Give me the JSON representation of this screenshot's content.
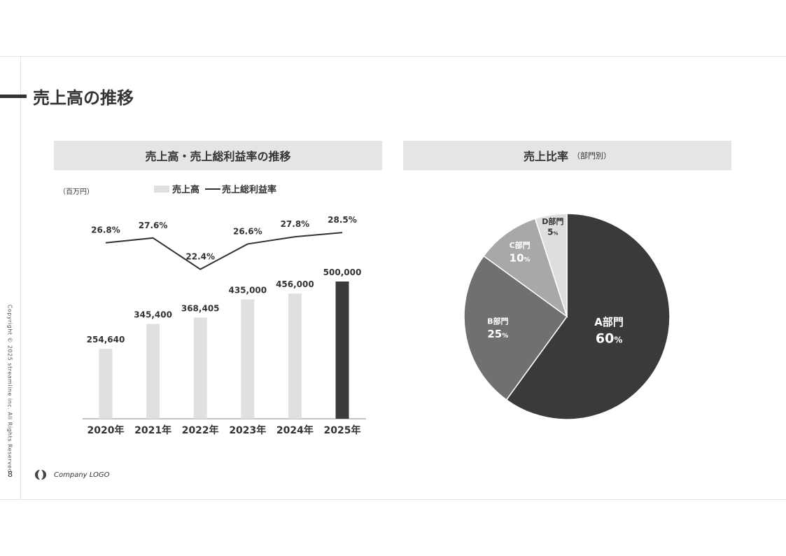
{
  "page_title": "売上高の推移",
  "left_panel": {
    "title": "売上高・売上総利益率の推移",
    "unit": "（百万円）"
  },
  "right_panel": {
    "title": "売上比率",
    "subtitle": "（部門別）"
  },
  "legend": {
    "bar_label": "売上高",
    "line_label": "売上総利益率"
  },
  "footer": {
    "page_number": "8",
    "logo_text": "Company LOGO",
    "copyright": "Copyright © 2025 streamline inc. All Rights Reserved"
  },
  "colors": {
    "bar_default": "#e0e0e0",
    "bar_highlight": "#3a3a3a",
    "line": "#333333",
    "header_bg": "#e5e5e5"
  },
  "chart_data": [
    {
      "type": "bar",
      "categories": [
        "2020年",
        "2021年",
        "2022年",
        "2023年",
        "2024年",
        "2025年"
      ],
      "series": [
        {
          "name": "売上高",
          "type": "bar",
          "values": [
            254640,
            345400,
            368405,
            435000,
            456000,
            500000
          ],
          "labels": [
            "254,640",
            "345,400",
            "368,405",
            "435,000",
            "456,000",
            "500,000"
          ]
        },
        {
          "name": "売上総利益率",
          "type": "line",
          "values": [
            26.8,
            27.6,
            22.4,
            26.6,
            27.8,
            28.5
          ],
          "labels": [
            "26.8%",
            "27.6%",
            "22.4%",
            "26.6%",
            "27.8%",
            "28.5%"
          ]
        }
      ],
      "highlight_index": 5
    },
    {
      "type": "pie",
      "slices": [
        {
          "label": "A部門",
          "value": 60,
          "value_label": "60",
          "unit": "%",
          "color": "#3a3a3a"
        },
        {
          "label": "B部門",
          "value": 25,
          "value_label": "25",
          "unit": "%",
          "color": "#707070"
        },
        {
          "label": "C部門",
          "value": 10,
          "value_label": "10",
          "unit": "%",
          "color": "#a8a8a8"
        },
        {
          "label": "D部門",
          "value": 5,
          "value_label": "5",
          "unit": "%",
          "color": "#dedede"
        }
      ]
    }
  ]
}
